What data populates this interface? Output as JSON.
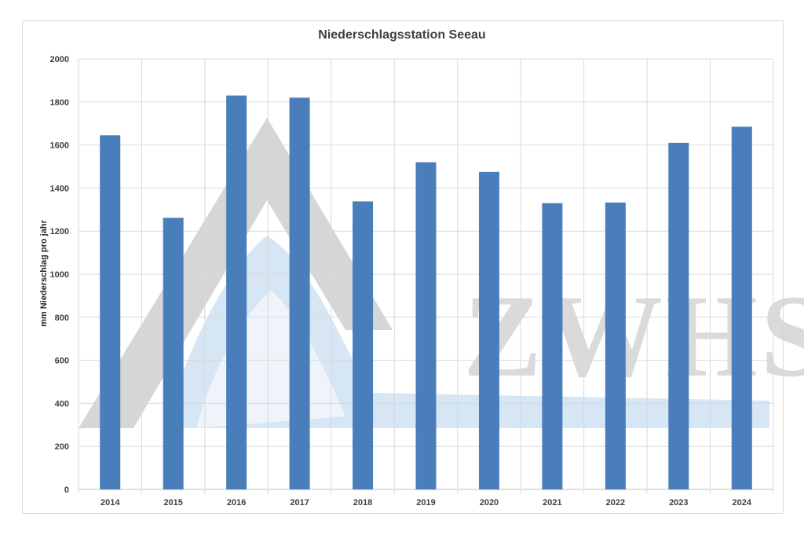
{
  "chart_data": {
    "type": "bar",
    "title": "Niederschlagsstation Seeau",
    "xlabel": "",
    "ylabel": "mm Niederschlag pro jahr",
    "categories": [
      "2014",
      "2015",
      "2016",
      "2017",
      "2018",
      "2019",
      "2020",
      "2021",
      "2022",
      "2023",
      "2024"
    ],
    "values": [
      1645,
      1262,
      1830,
      1820,
      1338,
      1520,
      1475,
      1330,
      1333,
      1610,
      1685
    ],
    "ylim": [
      0,
      2000
    ],
    "yticks": [
      "0",
      "200",
      "400",
      "600",
      "800",
      "1000",
      "1200",
      "1400",
      "1600",
      "1800",
      "2000"
    ],
    "grid": true,
    "legend": "none",
    "colors": {
      "bar": "#4a7ebb",
      "grid": "#d9d9d9",
      "axis": "#bfbfbf",
      "watermark_gray": "#c8c8c8",
      "watermark_blue": "#c5dcef"
    },
    "watermark_text": "ZWHS"
  }
}
